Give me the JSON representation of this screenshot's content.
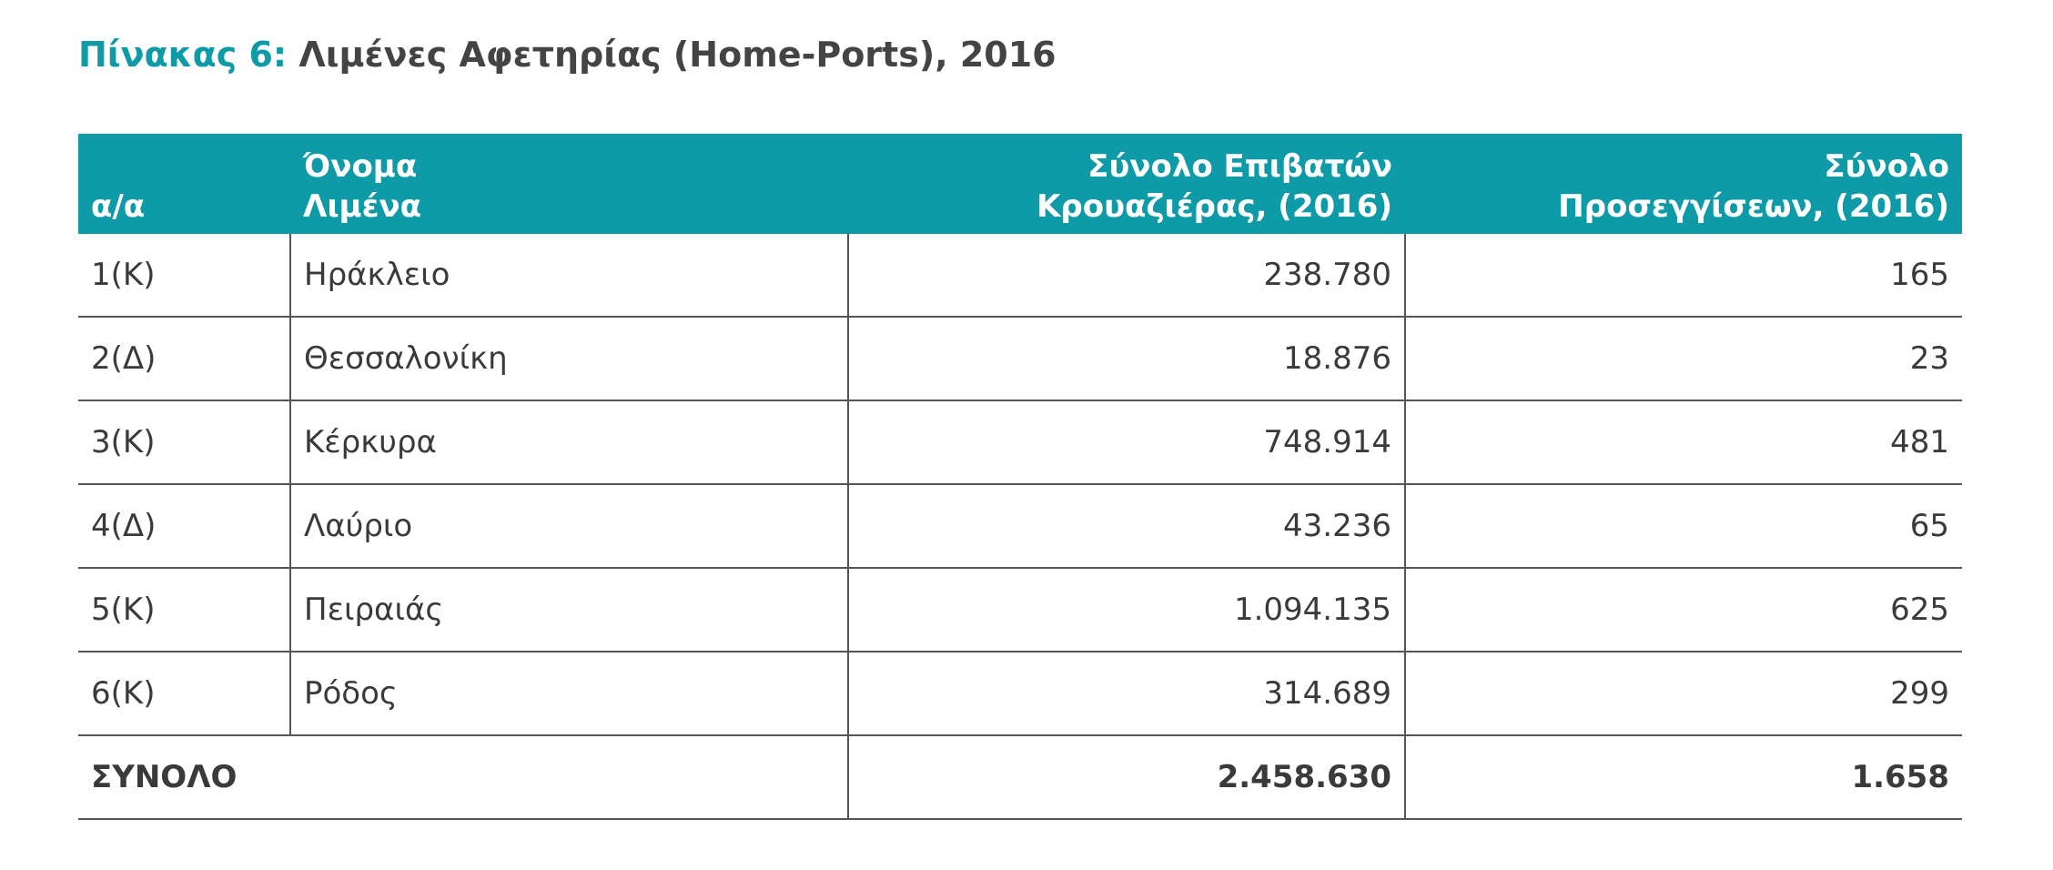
{
  "title": {
    "label": "Πίνακας 6:",
    "text": "Λιμένες Αφετηρίας (Home-Ports), 2016"
  },
  "table": {
    "header": [
      [
        "α/α"
      ],
      [
        "Όνομα",
        "Λιμένα"
      ],
      [
        "Σύνολο Επιβατών",
        "Κρουαζιέρας, (2016)"
      ],
      [
        "Σύνολο",
        "Προσεγγίσεων, (2016)"
      ]
    ],
    "rows": [
      [
        "1(Κ)",
        "Ηράκλειο",
        "238.780",
        "165"
      ],
      [
        "2(Δ)",
        "Θεσσαλονίκη",
        "18.876",
        "23"
      ],
      [
        "3(Κ)",
        "Κέρκυρα",
        "748.914",
        "481"
      ],
      [
        "4(Δ)",
        "Λαύριο",
        "43.236",
        "65"
      ],
      [
        "5(Κ)",
        "Πειραιάς",
        "1.094.135",
        "625"
      ],
      [
        "6(Κ)",
        "Ρόδος",
        "314.689",
        "299"
      ]
    ],
    "total": [
      "ΣΥΝΟΛΟ",
      "2.458.630",
      "1.658"
    ]
  }
}
